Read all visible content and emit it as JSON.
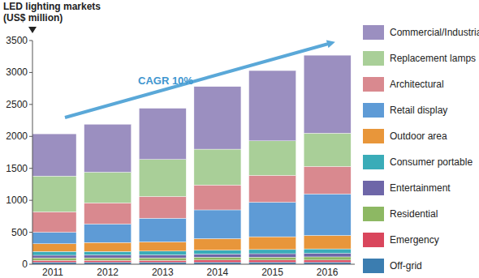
{
  "chart_data": {
    "type": "bar",
    "stacked": true,
    "ylabel": [
      "LED lighting markets",
      "(US$ million)"
    ],
    "annotations": [
      {
        "text": "CAGR 10%"
      }
    ],
    "categories": [
      "2011",
      "2012",
      "2013",
      "2014",
      "2015",
      "2016"
    ],
    "ylim": [
      0,
      3500
    ],
    "yticks": [
      0,
      500,
      1000,
      1500,
      2000,
      2500,
      3000,
      3500
    ],
    "grid": false,
    "legend": "right",
    "series": [
      {
        "name": "Off-grid",
        "color": "#3b7db0",
        "values": [
          30,
          30,
          30,
          30,
          30,
          30
        ]
      },
      {
        "name": "Emergency",
        "color": "#d9465c",
        "values": [
          30,
          30,
          30,
          35,
          35,
          35
        ]
      },
      {
        "name": "Residential",
        "color": "#8db863",
        "values": [
          40,
          40,
          40,
          45,
          45,
          50
        ]
      },
      {
        "name": "Entertainment",
        "color": "#6e66a8",
        "values": [
          40,
          45,
          45,
          50,
          55,
          55
        ]
      },
      {
        "name": "Consumer portable",
        "color": "#3aacb8",
        "values": [
          60,
          55,
          60,
          60,
          65,
          70
        ]
      },
      {
        "name": "Outdoor area",
        "color": "#e8963a",
        "values": [
          120,
          140,
          145,
          180,
          200,
          210
        ]
      },
      {
        "name": "Retail display",
        "color": "#5e9bd6",
        "values": [
          180,
          290,
          370,
          450,
          540,
          650
        ]
      },
      {
        "name": "Architectural",
        "color": "#d9898f",
        "values": [
          320,
          330,
          340,
          390,
          420,
          430
        ]
      },
      {
        "name": "Replacement lamps",
        "color": "#a9cf98",
        "values": [
          560,
          480,
          580,
          560,
          540,
          520
        ]
      },
      {
        "name": "Commercial/Industrial",
        "color": "#9b8fc0",
        "values": [
          660,
          750,
          800,
          980,
          1100,
          1220
        ]
      }
    ]
  }
}
